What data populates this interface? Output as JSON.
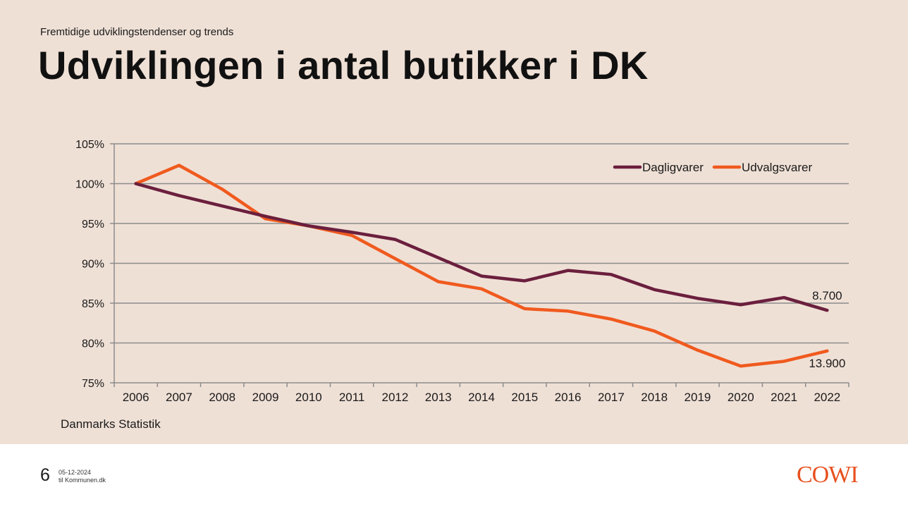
{
  "slide": {
    "subtitle": "Fremtidige udviklingstendenser og trends",
    "title": "Udviklingen i antal butikker i DK",
    "source": "Danmarks Statistik"
  },
  "footer": {
    "page_number": "6",
    "date": "05-12-2024",
    "label": "til Kommunen.dk",
    "logo": "COWI"
  },
  "colors": {
    "dagligvarer": "#6b1f3d",
    "udvalgsvarer": "#f05a1e",
    "background": "#efe0d6",
    "logo": "#e8501e"
  },
  "chart_data": {
    "type": "line",
    "title": "",
    "xlabel": "",
    "ylabel": "",
    "x": [
      "2006",
      "2007",
      "2008",
      "2009",
      "2010",
      "2011",
      "2012",
      "2013",
      "2014",
      "2015",
      "2016",
      "2017",
      "2018",
      "2019",
      "2020",
      "2021",
      "2022"
    ],
    "ylim": [
      75,
      105
    ],
    "yticks": [
      75,
      80,
      85,
      90,
      95,
      100,
      105
    ],
    "y_tick_labels": [
      "75%",
      "80%",
      "85%",
      "90%",
      "95%",
      "100%",
      "105%"
    ],
    "grid": true,
    "legend_position": "top-right",
    "series": [
      {
        "name": "Dagligvarer",
        "color": "#6b1f3d",
        "values": [
          100.0,
          98.5,
          97.2,
          95.9,
          94.7,
          93.9,
          93.0,
          90.7,
          88.4,
          87.8,
          89.1,
          88.6,
          86.7,
          85.6,
          84.8,
          85.7,
          84.1
        ],
        "end_label": "8.700"
      },
      {
        "name": "Udvalgsvarer",
        "color": "#f05a1e",
        "values": [
          100.0,
          102.3,
          99.3,
          95.6,
          94.7,
          93.5,
          90.6,
          87.7,
          86.8,
          84.3,
          84.0,
          83.0,
          81.5,
          79.1,
          77.1,
          77.7,
          79.0
        ],
        "end_label": "13.900"
      }
    ]
  }
}
